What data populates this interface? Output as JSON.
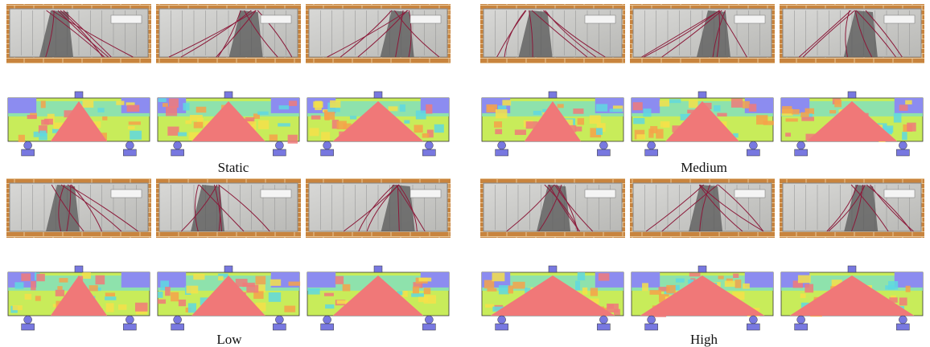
{
  "panels": [
    {
      "caption": "Static"
    },
    {
      "caption": "Medium"
    },
    {
      "caption": "Low"
    },
    {
      "caption": "High"
    }
  ]
}
